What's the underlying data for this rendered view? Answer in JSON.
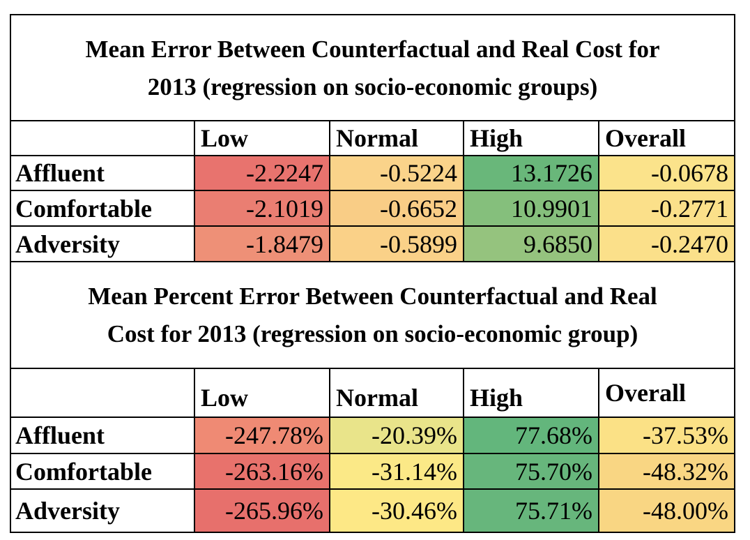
{
  "tables": [
    {
      "title_line1": "Mean Error Between Counterfactual and Real Cost for",
      "title_line2": "2013 (regression on socio-economic groups)",
      "columns": [
        "Low",
        "Normal",
        "High",
        "Overall"
      ],
      "rows": [
        {
          "label": "Affluent",
          "cells": [
            {
              "value": "-2.2247",
              "color": "#e8736e"
            },
            {
              "value": "-0.5224",
              "color": "#fad38a"
            },
            {
              "value": "13.1726",
              "color": "#69b77a"
            },
            {
              "value": "-0.0678",
              "color": "#fbe38b"
            }
          ]
        },
        {
          "label": "Comfortable",
          "cells": [
            {
              "value": "-2.1019",
              "color": "#ea7e72"
            },
            {
              "value": "-0.6652",
              "color": "#f9cd86"
            },
            {
              "value": "10.9901",
              "color": "#85bf7c"
            },
            {
              "value": "-0.2771",
              "color": "#fbe08a"
            }
          ]
        },
        {
          "label": "Adversity",
          "cells": [
            {
              "value": "-1.8479",
              "color": "#ee9077"
            },
            {
              "value": "-0.5899",
              "color": "#fad188"
            },
            {
              "value": "9.6850",
              "color": "#95c37e"
            },
            {
              "value": "-0.2470",
              "color": "#fbe08a"
            }
          ]
        }
      ]
    },
    {
      "title_line1": "Mean Percent Error Between Counterfactual and Real",
      "title_line2": "Cost for 2013 (regression on socio-economic group)",
      "columns": [
        "Low",
        "Normal",
        "High",
        "Overall"
      ],
      "rows": [
        {
          "label": "Affluent",
          "cells": [
            {
              "value": "-247.78%",
              "color": "#ef8a74"
            },
            {
              "value": "-20.39%",
              "color": "#e9e48a"
            },
            {
              "value": "77.68%",
              "color": "#63b67c"
            },
            {
              "value": "-37.53%",
              "color": "#fbe186"
            }
          ]
        },
        {
          "label": "Comfortable",
          "cells": [
            {
              "value": "-263.16%",
              "color": "#e8726c"
            },
            {
              "value": "-31.14%",
              "color": "#fbe987"
            },
            {
              "value": "75.70%",
              "color": "#67b67c"
            },
            {
              "value": "-48.32%",
              "color": "#f9d683"
            }
          ]
        },
        {
          "label": "Adversity",
          "cells": [
            {
              "value": "-265.96%",
              "color": "#e7706c"
            },
            {
              "value": "-30.46%",
              "color": "#fde886"
            },
            {
              "value": "75.71%",
              "color": "#67b67c"
            },
            {
              "value": "-48.00%",
              "color": "#f9d683"
            }
          ]
        }
      ]
    }
  ]
}
